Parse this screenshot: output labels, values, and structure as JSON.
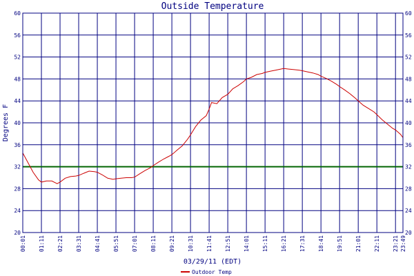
{
  "chart_data": {
    "type": "line",
    "title": "Outside Temperature",
    "xlabel": "03/29/11 (EDT)",
    "ylabel": "Degrees F",
    "ylim": [
      20,
      60
    ],
    "yticks": [
      20,
      24,
      28,
      32,
      36,
      40,
      44,
      48,
      52,
      56,
      60
    ],
    "xticks": [
      "00:01",
      "01:11",
      "02:21",
      "03:31",
      "04:41",
      "05:51",
      "07:01",
      "08:11",
      "09:21",
      "10:31",
      "11:41",
      "12:51",
      "14:01",
      "15:11",
      "16:21",
      "17:31",
      "18:41",
      "19:51",
      "21:01",
      "22:11",
      "23:21",
      "23:49"
    ],
    "grid": true,
    "reference_line": {
      "value": 32,
      "color": "#006400"
    },
    "legend_position": "bottom-center",
    "series": [
      {
        "name": "Outdoor Temp",
        "color": "#cc0000",
        "x": [
          "00:01",
          "00:20",
          "00:40",
          "01:00",
          "01:11",
          "01:30",
          "01:50",
          "02:10",
          "02:21",
          "02:40",
          "03:00",
          "03:20",
          "03:31",
          "03:50",
          "04:10",
          "04:30",
          "04:41",
          "05:00",
          "05:20",
          "05:40",
          "05:51",
          "06:10",
          "06:30",
          "06:50",
          "07:01",
          "07:20",
          "07:40",
          "08:00",
          "08:11",
          "08:30",
          "08:50",
          "09:10",
          "09:21",
          "09:40",
          "10:00",
          "10:20",
          "10:31",
          "10:50",
          "11:10",
          "11:30",
          "11:41",
          "11:50",
          "12:10",
          "12:30",
          "12:51",
          "13:10",
          "13:30",
          "13:50",
          "14:01",
          "14:20",
          "14:40",
          "15:00",
          "15:11",
          "15:30",
          "15:50",
          "16:10",
          "16:21",
          "16:40",
          "17:00",
          "17:20",
          "17:31",
          "17:50",
          "18:10",
          "18:30",
          "18:41",
          "19:00",
          "19:20",
          "19:40",
          "19:51",
          "20:10",
          "20:30",
          "20:50",
          "21:01",
          "21:20",
          "21:40",
          "22:00",
          "22:11",
          "22:30",
          "22:50",
          "23:10",
          "23:21",
          "23:40",
          "23:49"
        ],
        "y": [
          34.5,
          32.8,
          31.0,
          29.6,
          29.2,
          29.4,
          29.4,
          28.9,
          29.2,
          29.9,
          30.2,
          30.3,
          30.4,
          30.8,
          31.2,
          31.1,
          31.0,
          30.5,
          29.9,
          29.7,
          29.8,
          29.9,
          30.0,
          30.0,
          30.1,
          30.7,
          31.3,
          31.8,
          32.2,
          32.8,
          33.4,
          33.9,
          34.2,
          35.0,
          35.8,
          37.0,
          37.8,
          39.3,
          40.5,
          41.3,
          42.5,
          43.7,
          43.5,
          44.6,
          45.2,
          46.2,
          46.8,
          47.5,
          48.0,
          48.3,
          48.8,
          49.0,
          49.2,
          49.4,
          49.6,
          49.8,
          49.9,
          49.8,
          49.7,
          49.6,
          49.5,
          49.3,
          49.1,
          48.8,
          48.5,
          48.1,
          47.6,
          47.0,
          46.6,
          46.0,
          45.3,
          44.5,
          44.0,
          43.2,
          42.6,
          42.0,
          41.5,
          40.6,
          39.8,
          39.0,
          38.7,
          37.9,
          37.3
        ]
      }
    ]
  }
}
